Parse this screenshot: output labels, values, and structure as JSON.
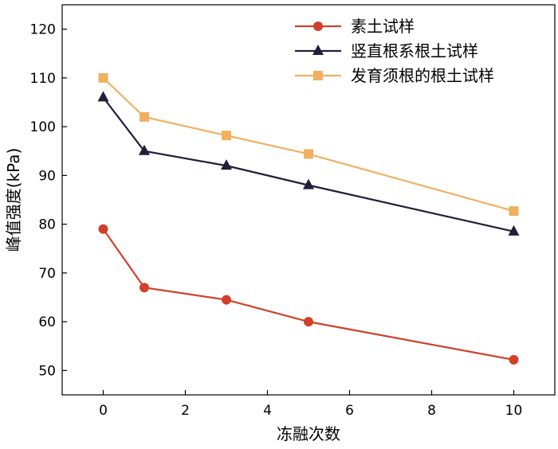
{
  "chart_data": {
    "type": "line",
    "xlabel": "冻融次数",
    "ylabel": "峰值强度(kPa)",
    "xlim": [
      -1,
      11
    ],
    "ylim": [
      45,
      125
    ],
    "xticks": [
      0,
      2,
      4,
      6,
      8,
      10
    ],
    "yticks": [
      50,
      60,
      70,
      80,
      90,
      100,
      110,
      120
    ],
    "grid": false,
    "legend_position": "top-right",
    "x": [
      0,
      1,
      3,
      5,
      10
    ],
    "series": [
      {
        "name": "素土试样",
        "values": [
          79,
          67,
          64.5,
          60,
          52.2
        ],
        "color": "#d0402a",
        "marker": "circle"
      },
      {
        "name": "竖直根系根土试样",
        "values": [
          106,
          95,
          92,
          88,
          78.5
        ],
        "color": "#1f1e3c",
        "marker": "triangle"
      },
      {
        "name": "发育须根的根土试样",
        "values": [
          110,
          102,
          98.2,
          94.4,
          82.7
        ],
        "color": "#f0b060",
        "marker": "square"
      }
    ]
  }
}
